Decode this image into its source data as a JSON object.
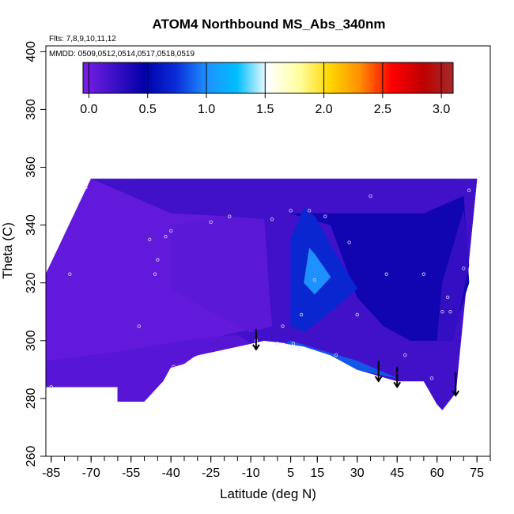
{
  "chart_data": {
    "type": "heatmap",
    "title": "ATOM4 Northbound MS_Abs_340nm",
    "subtitle_lines": [
      "Flts: 7,8,9,10,11,12",
      "MMDD: 0509,0512,0514,0517,0518,0519"
    ],
    "xlabel": "Latitude (deg N)",
    "ylabel": "Theta (C)",
    "xlim": [
      -87,
      80
    ],
    "ylim": [
      260,
      402
    ],
    "x_ticks": [
      -85,
      -70,
      -55,
      -40,
      -25,
      -10,
      5,
      15,
      30,
      45,
      60,
      75
    ],
    "y_ticks": [
      260,
      280,
      300,
      320,
      340,
      360,
      380,
      400
    ],
    "colorbar": {
      "range": [
        -0.05,
        3.1
      ],
      "ticks": [
        0.0,
        0.5,
        1.0,
        1.5,
        2.0,
        2.5,
        3.0
      ],
      "tick_labels": [
        "0.0",
        "0.5",
        "1.0",
        "1.5",
        "2.0",
        "2.5",
        "3.0"
      ],
      "colors": [
        "#7a1fe6",
        "#3d10c8",
        "#0000a8",
        "#0a2cd8",
        "#1e90ff",
        "#00bfff",
        "#ffffff",
        "#ffffa0",
        "#ffd700",
        "#ff8c00",
        "#ff0000",
        "#c00000",
        "#a52a2a"
      ]
    },
    "field_regions": [
      {
        "name": "upper-envelope",
        "value": 0.2,
        "polygon": [
          [
            -87,
            323
          ],
          [
            -70,
            356
          ],
          [
            75,
            356
          ],
          [
            67,
            282
          ],
          [
            62,
            276
          ],
          [
            60,
            278
          ],
          [
            55,
            286
          ],
          [
            45,
            286
          ],
          [
            30,
            290
          ],
          [
            20,
            295
          ],
          [
            10,
            298
          ],
          [
            5,
            299
          ],
          [
            -5,
            300
          ],
          [
            -10,
            299
          ],
          [
            -20,
            297
          ],
          [
            -30,
            295
          ],
          [
            -40,
            291
          ],
          [
            -43,
            286
          ],
          [
            -50,
            279
          ],
          [
            -60,
            279
          ],
          [
            -60,
            284
          ],
          [
            -87,
            284
          ]
        ]
      },
      {
        "name": "left-purple",
        "value": 0.05,
        "polygon": [
          [
            -87,
            290
          ],
          [
            -87,
            323
          ],
          [
            -70,
            356
          ],
          [
            -55,
            350
          ],
          [
            -40,
            344
          ],
          [
            -20,
            343
          ],
          [
            -5,
            340
          ],
          [
            -5,
            305
          ],
          [
            -20,
            302
          ],
          [
            -35,
            292
          ],
          [
            -50,
            288
          ]
        ]
      },
      {
        "name": "central-purple",
        "value": 0.08,
        "polygon": [
          [
            -40,
            340
          ],
          [
            -20,
            343
          ],
          [
            -5,
            342
          ],
          [
            -3,
            315
          ],
          [
            -2,
            305
          ],
          [
            -10,
            303
          ],
          [
            -25,
            310
          ],
          [
            -40,
            318
          ]
        ]
      },
      {
        "name": "lower-purple",
        "value": 0.1,
        "polygon": [
          [
            -87,
            284
          ],
          [
            -60,
            284
          ],
          [
            -60,
            279
          ],
          [
            -50,
            279
          ],
          [
            -43,
            286
          ],
          [
            -40,
            291
          ],
          [
            -30,
            295
          ],
          [
            -20,
            297
          ],
          [
            -10,
            299
          ],
          [
            -15,
            302
          ],
          [
            -35,
            300
          ],
          [
            -60,
            296
          ],
          [
            -87,
            293
          ]
        ]
      },
      {
        "name": "right-dark-band",
        "value": 0.4,
        "polygon": [
          [
            5,
            344
          ],
          [
            55,
            344
          ],
          [
            70,
            350
          ],
          [
            72,
            320
          ],
          [
            65,
            300
          ],
          [
            50,
            300
          ],
          [
            40,
            305
          ],
          [
            30,
            315
          ],
          [
            20,
            340
          ]
        ]
      },
      {
        "name": "blue-plume",
        "value": 0.7,
        "polygon": [
          [
            5,
            305
          ],
          [
            5,
            335
          ],
          [
            10,
            346
          ],
          [
            14,
            343
          ],
          [
            22,
            330
          ],
          [
            30,
            318
          ],
          [
            20,
            310
          ],
          [
            10,
            303
          ]
        ]
      },
      {
        "name": "blue-plume-core",
        "value": 1.0,
        "polygon": [
          [
            10,
            320
          ],
          [
            12,
            332
          ],
          [
            14,
            330
          ],
          [
            20,
            322
          ],
          [
            14,
            316
          ]
        ]
      },
      {
        "name": "surface-blue",
        "value": 0.85,
        "polygon": [
          [
            3,
            299
          ],
          [
            10,
            298
          ],
          [
            20,
            295
          ],
          [
            30,
            290
          ],
          [
            40,
            288
          ],
          [
            45,
            287
          ],
          [
            30,
            293
          ],
          [
            15,
            297
          ],
          [
            5,
            300
          ]
        ]
      },
      {
        "name": "right-purple-edge",
        "value": 0.25,
        "polygon": [
          [
            60,
            300
          ],
          [
            66,
            300
          ],
          [
            72,
            326
          ],
          [
            70,
            345
          ],
          [
            62,
            320
          ]
        ]
      }
    ],
    "sample_points": [
      [
        -85,
        284
      ],
      [
        -78,
        323
      ],
      [
        -72,
        353
      ],
      [
        -52,
        305
      ],
      [
        -48,
        335
      ],
      [
        -46,
        323
      ],
      [
        -45,
        328
      ],
      [
        -42,
        336
      ],
      [
        -40,
        338
      ],
      [
        -39,
        291
      ],
      [
        -25,
        341
      ],
      [
        -18,
        343
      ],
      [
        -8,
        300
      ],
      [
        -2,
        342
      ],
      [
        0,
        299
      ],
      [
        2,
        305
      ],
      [
        5,
        345
      ],
      [
        6,
        299
      ],
      [
        8,
        297
      ],
      [
        9,
        309
      ],
      [
        12,
        345
      ],
      [
        14,
        321
      ],
      [
        18,
        343
      ],
      [
        22,
        295
      ],
      [
        27,
        334
      ],
      [
        30,
        309
      ],
      [
        35,
        350
      ],
      [
        41,
        323
      ],
      [
        45,
        285
      ],
      [
        48,
        295
      ],
      [
        55,
        323
      ],
      [
        58,
        287
      ],
      [
        62,
        310
      ],
      [
        64,
        315
      ],
      [
        65,
        310
      ],
      [
        70,
        325
      ],
      [
        72,
        352
      ]
    ],
    "arrows": [
      {
        "x": -8,
        "y_top": 304,
        "y_bottom": 297
      },
      {
        "x": 38,
        "y_top": 293,
        "y_bottom": 286
      },
      {
        "x": 45,
        "y_top": 291,
        "y_bottom": 284
      },
      {
        "x": 67,
        "y_top": 289,
        "y_bottom": 281
      }
    ]
  }
}
